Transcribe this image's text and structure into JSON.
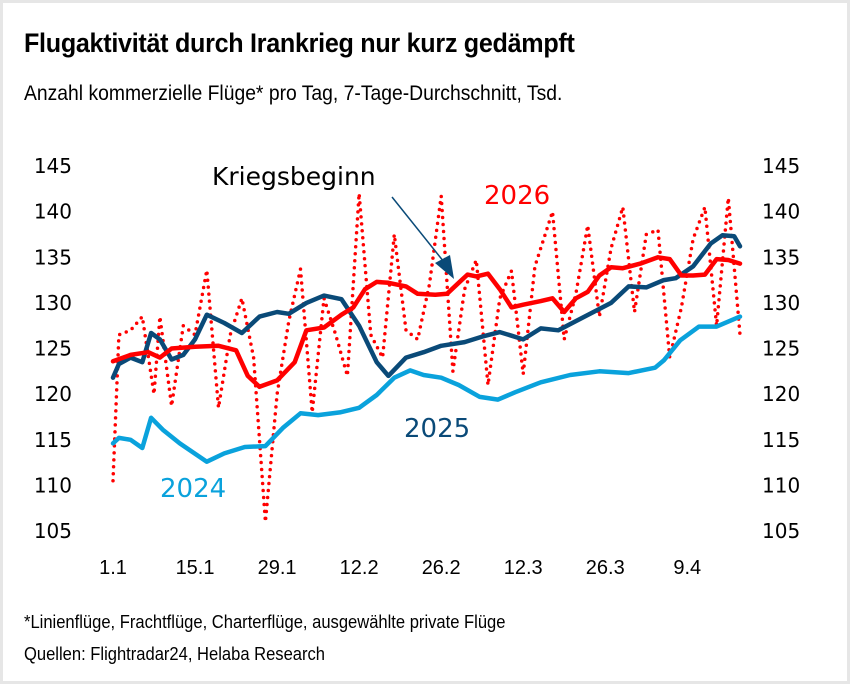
{
  "header": {
    "title": "Flugaktivität durch Irankrieg nur kurz gedämpft",
    "subtitle": "Anzahl kommerzielle Flüge* pro Tag, 7-Tage-Durchschnitt, Tsd."
  },
  "footer": {
    "note": "*Linienflüge, Frachtflüge, Charterflüge, ausgewählte private Flüge",
    "source": "Quellen: Flightradar24, Helaba Research"
  },
  "chart_data": {
    "type": "line",
    "title": "Flugaktivität durch Irankrieg nur kurz gedämpft",
    "subtitle": "Anzahl kommerzielle Flüge* pro Tag, 7-Tage-Durchschnitt, Tsd.",
    "xlabel": "",
    "ylabel": "",
    "x_unit": "days since 1 Jan",
    "xlim": [
      0,
      107
    ],
    "ylim": [
      105,
      145
    ],
    "yticks": [
      "105",
      "110",
      "115",
      "120",
      "125",
      "130",
      "135",
      "140",
      "145"
    ],
    "xticks": [
      {
        "day": 0,
        "label": "1.1"
      },
      {
        "day": 14,
        "label": "15.1"
      },
      {
        "day": 28,
        "label": "29.1"
      },
      {
        "day": 42,
        "label": "12.2"
      },
      {
        "day": 56,
        "label": "26.2"
      },
      {
        "day": 70,
        "label": "12.3"
      },
      {
        "day": 84,
        "label": "26.3"
      },
      {
        "day": 98,
        "label": "9.4"
      }
    ],
    "grid": false,
    "dual_y_axis": true,
    "series": [
      {
        "name": "2024",
        "label": "2024",
        "color": "#0aa2dc",
        "style": "solid",
        "x": [
          0,
          1,
          3,
          5,
          6.5,
          8.5,
          11.4,
          16,
          19,
          22.5,
          26,
          29,
          32,
          35,
          38.7,
          42,
          45,
          48,
          50.7,
          53,
          56,
          59,
          62.6,
          65.7,
          68.6,
          73,
          78,
          83,
          88,
          92.5,
          94,
          96.8,
          100,
          103,
          107
        ],
        "y": [
          114.6,
          115.2,
          115.0,
          114.1,
          117.4,
          116.1,
          114.6,
          112.6,
          113.5,
          114.2,
          114.3,
          116.3,
          117.9,
          117.7,
          118.0,
          118.5,
          119.9,
          121.8,
          122.6,
          122.1,
          121.8,
          121.0,
          119.7,
          119.4,
          120.2,
          121.3,
          122.1,
          122.5,
          122.3,
          122.9,
          123.7,
          125.9,
          127.4,
          127.4,
          128.5
        ]
      },
      {
        "name": "2025",
        "label": "2025",
        "color": "#0a4a78",
        "style": "solid",
        "x": [
          0,
          1,
          3,
          5,
          6.5,
          8,
          10,
          12,
          14,
          16,
          19,
          22,
          25,
          28,
          30,
          33,
          36,
          39,
          42,
          45,
          47,
          50,
          53,
          56,
          60,
          63,
          66,
          68,
          70,
          73,
          76,
          79,
          82,
          85,
          88,
          91,
          94,
          96,
          99,
          102,
          104,
          106,
          107
        ],
        "y": [
          121.8,
          123.3,
          124.0,
          123.5,
          126.7,
          126.0,
          123.8,
          124.3,
          126.0,
          128.7,
          127.8,
          126.7,
          128.5,
          129.0,
          128.8,
          130.0,
          130.8,
          130.4,
          127.5,
          123.5,
          122.0,
          124.0,
          124.6,
          125.3,
          125.7,
          126.3,
          126.8,
          126.4,
          126.0,
          127.2,
          127.0,
          128.0,
          129.0,
          130.0,
          131.8,
          131.7,
          132.5,
          132.7,
          134.0,
          136.5,
          137.4,
          137.3,
          136.2
        ]
      },
      {
        "name": "2026",
        "label": "2026",
        "color": "#ff0000",
        "style": "solid",
        "x": [
          0,
          3,
          6,
          8,
          10,
          14,
          18,
          21,
          23,
          25,
          28,
          31,
          33,
          36,
          39,
          41,
          43,
          45,
          47,
          50,
          52,
          55,
          57,
          59,
          60.5,
          62,
          64,
          66,
          68,
          70,
          73,
          75,
          77,
          79,
          81,
          83,
          85,
          87,
          90,
          93,
          95,
          97,
          99,
          101,
          103,
          105,
          107
        ],
        "y": [
          123.6,
          124.3,
          124.6,
          124.0,
          125.0,
          125.2,
          125.3,
          124.8,
          122.0,
          120.8,
          121.5,
          123.5,
          127.0,
          127.3,
          128.7,
          129.5,
          131.5,
          132.3,
          132.2,
          131.8,
          131.0,
          130.9,
          131.0,
          132.2,
          133.1,
          132.9,
          133.2,
          131.5,
          129.5,
          129.8,
          130.2,
          130.5,
          129.0,
          130.5,
          131.2,
          133.0,
          133.9,
          133.8,
          134.3,
          135.0,
          134.8,
          133.0,
          133.0,
          133.1,
          134.8,
          134.7,
          134.3
        ]
      },
      {
        "name": "2026 daily",
        "label": "",
        "color": "#ff0000",
        "style": "dotted",
        "x": [
          0,
          1,
          3,
          5,
          7,
          8,
          10,
          12,
          14,
          16,
          18,
          20,
          22,
          24,
          26,
          28,
          30,
          32,
          34,
          36,
          38,
          40,
          42,
          44,
          46,
          48,
          50,
          52,
          54,
          56,
          58,
          60,
          62,
          64,
          66,
          68,
          70,
          72,
          75,
          77,
          79,
          81,
          83,
          85,
          87,
          89,
          91,
          93,
          95,
          97,
          99,
          101,
          103,
          105,
          107
        ],
        "y": [
          110.5,
          126.5,
          127.0,
          128.5,
          120.0,
          128.5,
          118.7,
          127.5,
          126.5,
          133.6,
          118.5,
          126.5,
          130.5,
          124.0,
          106.0,
          120.0,
          128.0,
          133.7,
          118.0,
          130.5,
          126.5,
          122.0,
          142.0,
          126.5,
          124.0,
          137.5,
          127.0,
          126.0,
          132.0,
          141.7,
          122.5,
          131.5,
          134.7,
          121.0,
          130.5,
          133.5,
          122.2,
          134.0,
          140.0,
          126.0,
          131.0,
          138.5,
          128.5,
          136.0,
          140.5,
          129.0,
          137.5,
          138.0,
          124.0,
          129.5,
          137.0,
          140.5,
          127.5,
          141.5,
          126.5
        ]
      }
    ],
    "annotations": [
      {
        "text": "Kriegsbeginn",
        "arrow_to_day": 60,
        "arrow_to_value": 133.1
      }
    ]
  }
}
